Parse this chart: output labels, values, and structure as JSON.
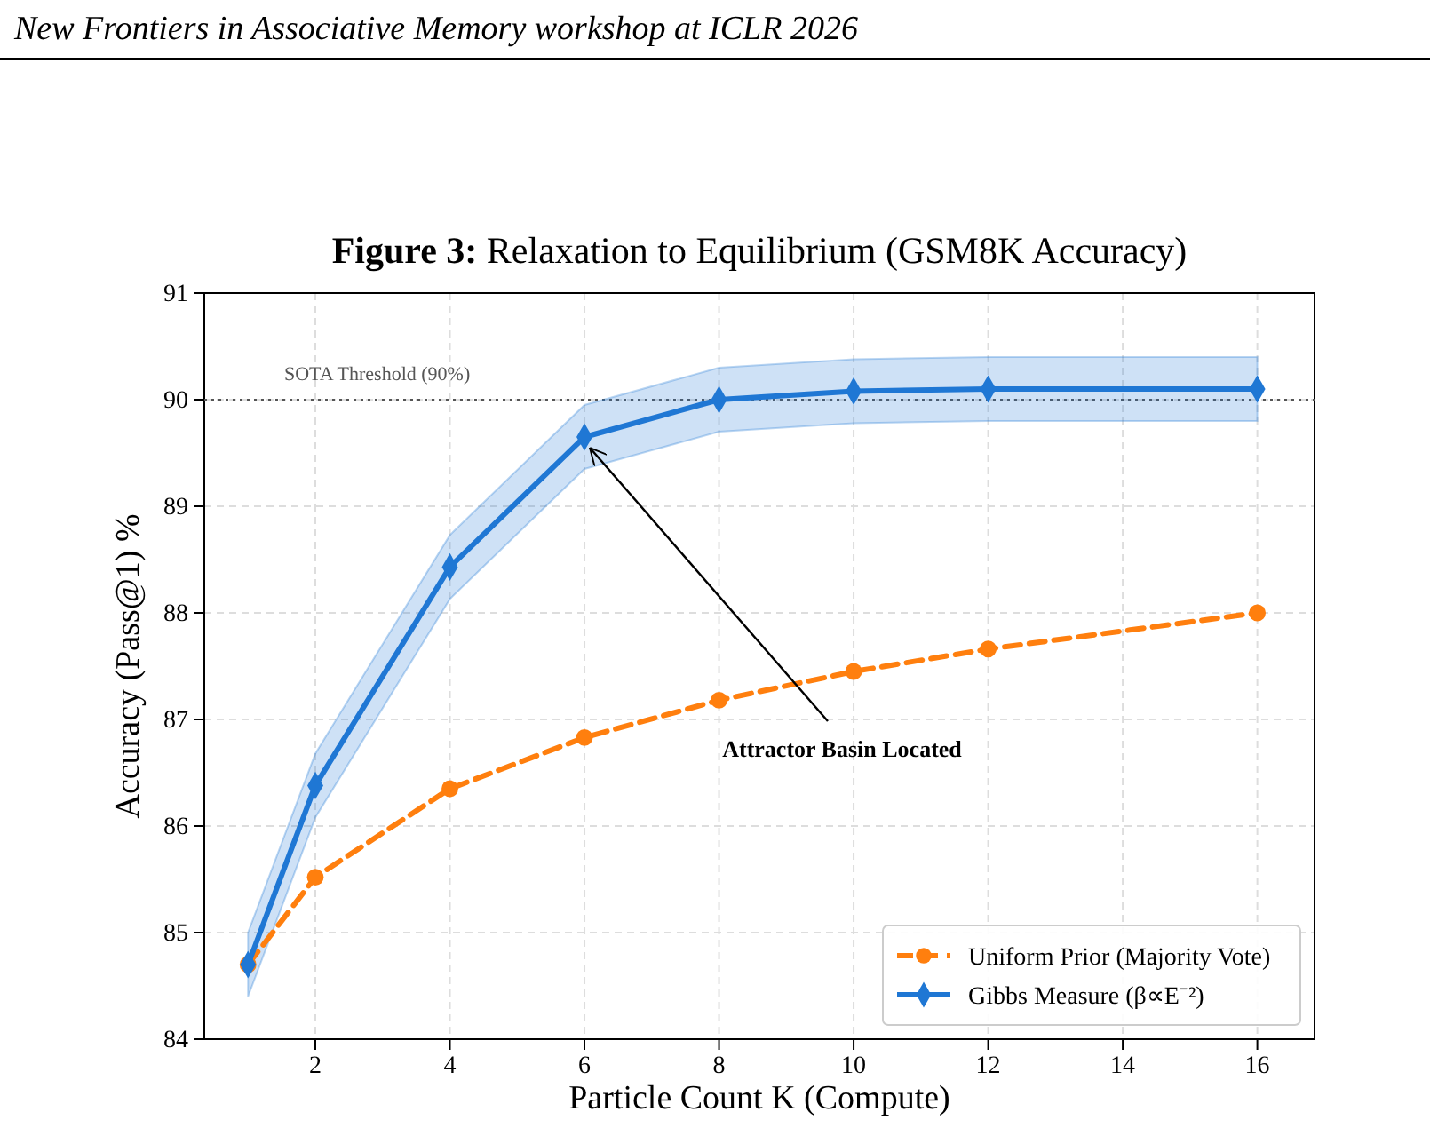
{
  "chart_data": {
    "type": "line",
    "title": "Figure 3: Relaxation to Equilibrium (GSM8K Accuracy)",
    "xlabel": "Particle Count K (Compute)",
    "ylabel": "Accuracy (Pass@1) %",
    "x": [
      1,
      2,
      4,
      6,
      8,
      10,
      12,
      16
    ],
    "series": [
      {
        "name": "Uniform Prior (Majority Vote)",
        "color": "#ff7f0e",
        "marker": "circle",
        "line_style": "dashed",
        "values": [
          84.7,
          85.52,
          86.35,
          86.83,
          87.18,
          87.45,
          87.66,
          88.0
        ]
      },
      {
        "name": "Gibbs Measure (β∝E⁻²)",
        "color": "#1f77d4",
        "marker": "diamond",
        "line_style": "solid",
        "values": [
          84.7,
          86.38,
          88.43,
          89.65,
          90.0,
          90.08,
          90.1,
          90.1
        ],
        "lower": [
          84.4,
          86.08,
          88.13,
          89.35,
          89.7,
          89.78,
          89.8,
          89.8
        ],
        "upper": [
          85.0,
          86.68,
          88.73,
          89.95,
          90.3,
          90.38,
          90.4,
          90.4
        ]
      }
    ],
    "xlim": [
      0.35,
      16.85
    ],
    "xticks": [
      2,
      4,
      6,
      8,
      10,
      12,
      14,
      16
    ],
    "ylim": [
      84,
      91
    ],
    "yticks": [
      84,
      85,
      86,
      87,
      88,
      89,
      90,
      91
    ],
    "grid": true,
    "legend": "bottom right",
    "ref_lines": [
      {
        "axis": "y",
        "value": 90,
        "label": "SOTA Threshold (90%)",
        "color": "#555555",
        "line_style": "dotted"
      }
    ],
    "annotations": [
      "New Frontiers in Associative Memory workshop at ICLR 2026",
      {
        "text": "Attractor Basin Located",
        "x": 6,
        "y": 89.65
      }
    ]
  }
}
